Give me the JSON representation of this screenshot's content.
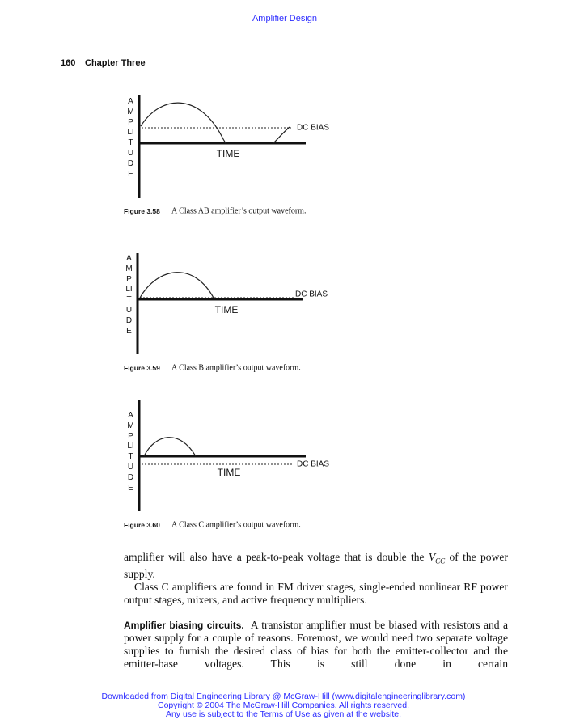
{
  "header": {
    "running_title": "Amplifier Design",
    "page_number": "160",
    "chapter": "Chapter Three"
  },
  "figures": [
    {
      "axis_label": "AMPLITUDE",
      "time_label": "TIME",
      "bias_label": "DC BIAS",
      "number": "Figure 3.58",
      "caption": "A Class AB amplifier’s output waveform."
    },
    {
      "axis_label": "AMPLITUDE",
      "time_label": "TIME",
      "bias_label": "DC BIAS",
      "number": "Figure 3.59",
      "caption": "A Class B amplifier’s output waveform."
    },
    {
      "axis_label": "AMPLITUDE",
      "time_label": "TIME",
      "bias_label": "DC BIAS",
      "number": "Figure 3.60",
      "caption": "A Class C amplifier’s output waveform."
    }
  ],
  "body": {
    "paragraph_1": {
      "text_before": "amplifier will also have a peak-to-peak voltage that is double the ",
      "symbol": "V",
      "subscript": "CC",
      "text_after": " of the power supply."
    },
    "paragraph_2": "Class C amplifiers are found in FM driver stages, single-ended nonlinear RF power output stages, mixers, and active frequency multipliers.",
    "paragraph_3": {
      "heading": "Amplifier biasing circuits.",
      "text": "A transistor amplifier must be biased with resistors and a power supply for a couple of reasons. Foremost, we would need two separate voltage supplies to furnish the desired class of bias for both the emitter-collector and the emitter-base voltages. This is still done in certain"
    }
  },
  "footer": {
    "lines": [
      "Downloaded from Digital Engineering Library @ McGraw-Hill (www.digitalengineeringlibrary.com)",
      "Copyright © 2004 The McGraw-Hill Companies. All rights reserved.",
      "Any use is subject to the Terms of Use as given at the website."
    ]
  }
}
